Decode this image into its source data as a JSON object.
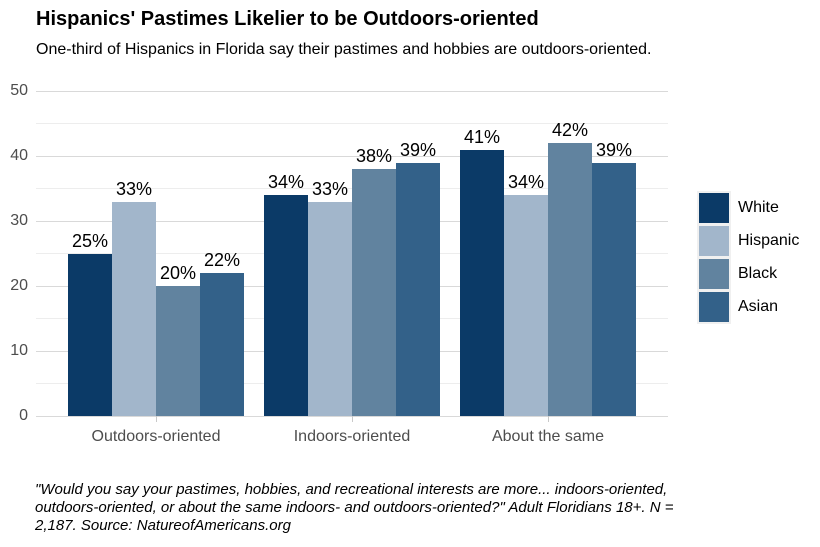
{
  "title": "Hispanics' Pastimes Likelier to be Outdoors-oriented",
  "subtitle": "One-third of Hispanics in Florida say their pastimes and hobbies are outdoors-oriented.",
  "caption_lines": [
    "\"Would you say your pastimes, hobbies, and recreational interests are more... indoors-oriented,",
    "outdoors-oriented, or about the same indoors- and outdoors-oriented?\" Adult Floridians 18+. N =",
    "2,187. Source: NatureofAmericans.org"
  ],
  "chart_data": {
    "type": "bar",
    "title": "Hispanics' Pastimes Likelier to be Outdoors-oriented",
    "subtitle": "One-third of Hispanics in Florida say their pastimes and hobbies are outdoors-oriented.",
    "caption": "\"Would you say your pastimes, hobbies, and recreational interests are more... indoors-oriented, outdoors-oriented, or about the same indoors- and outdoors-oriented?\" Adult Floridians 18+. N = 2,187. Source: NatureofAmericans.org",
    "categories": [
      "Outdoors-oriented",
      "Indoors-oriented",
      "About the same"
    ],
    "series": [
      {
        "name": "White",
        "color": "#0b3a67",
        "values": [
          25,
          34,
          41
        ],
        "labels": [
          "25%",
          "34%",
          "41%"
        ]
      },
      {
        "name": "Hispanic",
        "color": "#a2b6cb",
        "values": [
          33,
          33,
          34
        ],
        "labels": [
          "33%",
          "33%",
          "34%"
        ]
      },
      {
        "name": "Black",
        "color": "#61839f",
        "values": [
          20,
          38,
          42
        ],
        "labels": [
          "20%",
          "38%",
          "42%"
        ]
      },
      {
        "name": "Asian",
        "color": "#336189",
        "values": [
          22,
          39,
          39
        ],
        "labels": [
          "22%",
          "39%",
          "39%"
        ]
      }
    ],
    "xlabel": "",
    "ylabel": "",
    "ylim": [
      0,
      50
    ],
    "yticks": [
      0,
      10,
      20,
      30,
      40,
      50
    ],
    "minor_ticks": [
      5,
      15,
      25,
      35,
      45
    ],
    "grid": "horizontal major+minor",
    "legend_position": "right",
    "value_label_format": "percent"
  },
  "colors": {
    "background": "#ffffff",
    "grid_major": "#d9d9d9",
    "grid_minor": "#ededed",
    "axis_text": "#4d4d4d",
    "value_label_text": "#000000"
  }
}
